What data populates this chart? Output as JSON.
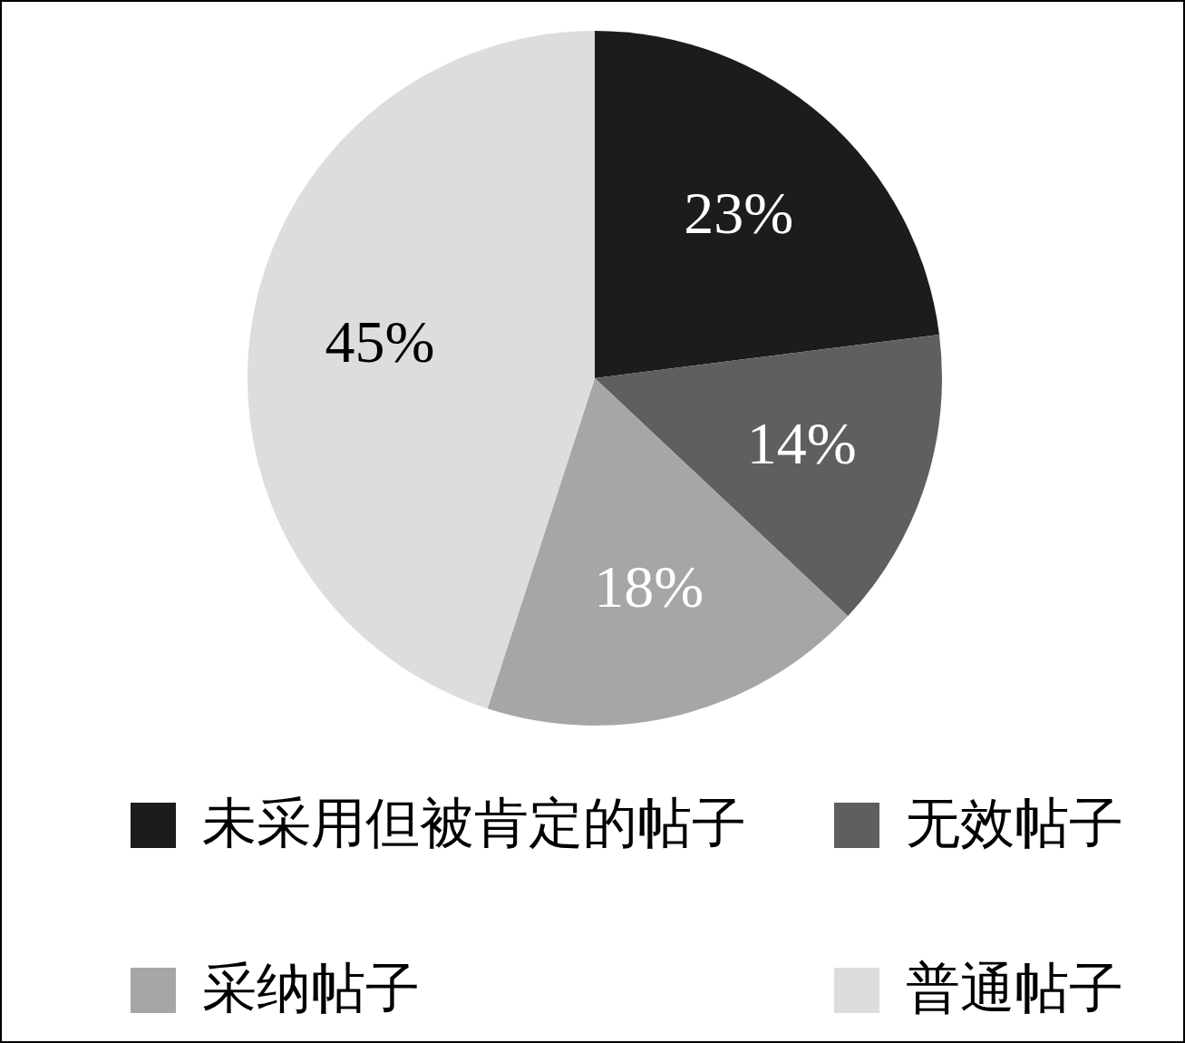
{
  "chart_data": {
    "type": "pie",
    "categories": [
      "未采用但被肯定的帖子",
      "无效帖子",
      "采纳帖子",
      "普通帖子"
    ],
    "values": [
      23,
      14,
      18,
      45
    ],
    "colors": [
      "#1c1c1c",
      "#5f5f5f",
      "#a6a6a6",
      "#dddddd"
    ],
    "value_labels": [
      "23%",
      "14%",
      "18%",
      "45%"
    ],
    "legend": "bottom"
  }
}
